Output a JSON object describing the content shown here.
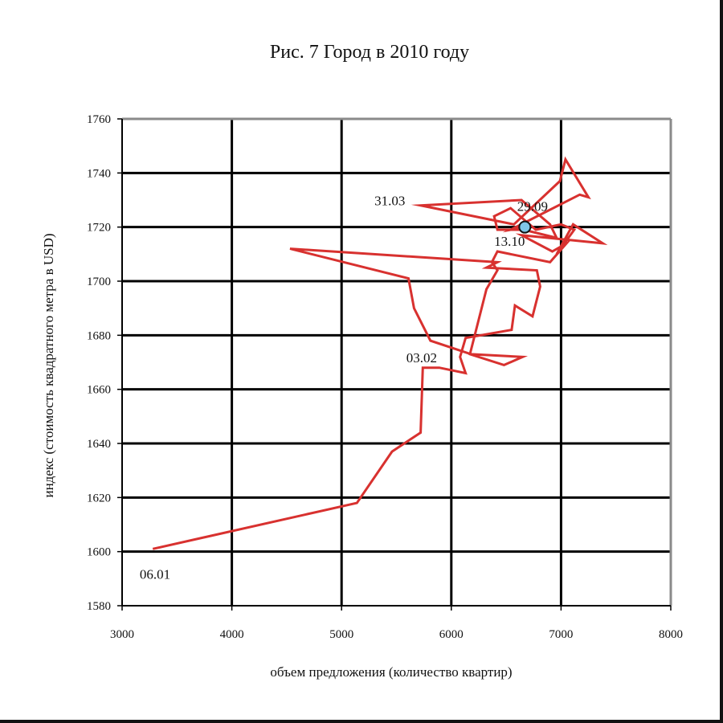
{
  "chart_data": {
    "type": "line",
    "title": "Рис. 7 Город в 2010 году",
    "xlabel": "объем предложения (количество квартир)",
    "ylabel": "индекс (стоимость квадратного метра в USD)",
    "xlim": [
      3000,
      8000
    ],
    "ylim": [
      1580,
      1760
    ],
    "xticks": [
      3000,
      4000,
      5000,
      6000,
      7000,
      8000
    ],
    "yticks": [
      1580,
      1600,
      1620,
      1640,
      1660,
      1680,
      1700,
      1720,
      1740,
      1760
    ],
    "grid": true,
    "series": [
      {
        "color": "#d8312f",
        "points": [
          [
            3280,
            1601
          ],
          [
            5140,
            1618
          ],
          [
            5460,
            1637
          ],
          [
            5720,
            1644
          ],
          [
            5740,
            1668
          ],
          [
            5890,
            1668
          ],
          [
            6130,
            1666
          ],
          [
            6080,
            1672
          ],
          [
            6130,
            1679
          ],
          [
            6550,
            1682
          ],
          [
            6580,
            1691
          ],
          [
            6740,
            1687
          ],
          [
            6810,
            1698
          ],
          [
            6780,
            1704
          ],
          [
            6320,
            1705
          ],
          [
            6420,
            1707
          ],
          [
            4530,
            1712
          ],
          [
            5610,
            1701
          ],
          [
            5660,
            1690
          ],
          [
            5810,
            1678
          ],
          [
            6180,
            1673
          ],
          [
            6650,
            1672
          ],
          [
            6480,
            1669
          ],
          [
            6170,
            1673
          ],
          [
            6320,
            1697
          ],
          [
            6420,
            1704
          ],
          [
            6370,
            1707
          ],
          [
            6420,
            1711
          ],
          [
            6900,
            1707
          ],
          [
            7050,
            1714
          ],
          [
            6920,
            1711
          ],
          [
            6640,
            1717
          ],
          [
            7380,
            1714
          ],
          [
            7110,
            1721
          ],
          [
            6960,
            1710
          ],
          [
            7120,
            1719
          ],
          [
            7000,
            1721
          ],
          [
            6770,
            1719
          ],
          [
            6540,
            1727
          ],
          [
            6390,
            1724
          ],
          [
            6420,
            1719
          ],
          [
            6660,
            1719
          ],
          [
            6960,
            1716
          ],
          [
            6900,
            1721
          ],
          [
            6640,
            1730
          ],
          [
            5720,
            1728
          ],
          [
            6570,
            1721
          ],
          [
            6990,
            1737
          ],
          [
            7040,
            1745
          ],
          [
            7250,
            1731
          ],
          [
            7170,
            1732
          ],
          [
            6540,
            1719
          ],
          [
            6670,
            1720
          ]
        ]
      }
    ],
    "highlight_point": [
      6670,
      1720
    ],
    "highlight_color": "#7fc6e8",
    "annotations": [
      {
        "text": "06.01",
        "x": 3300,
        "y": 1590
      },
      {
        "text": "03.02",
        "x": 5730,
        "y": 1670
      },
      {
        "text": "31.03",
        "x": 5440,
        "y": 1728
      },
      {
        "text": "29.09",
        "x": 6740,
        "y": 1726
      },
      {
        "text": "13.10",
        "x": 6530,
        "y": 1713
      }
    ]
  }
}
